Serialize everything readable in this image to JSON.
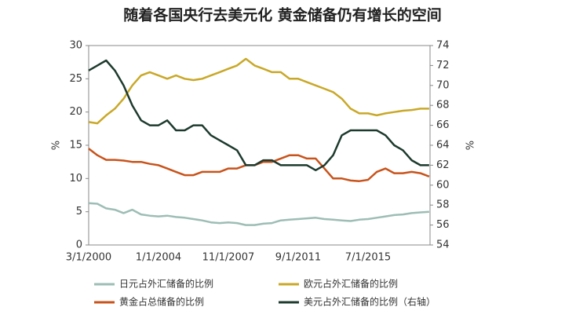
{
  "chart_data": {
    "type": "line",
    "title": "随着各国央行去美元化 黄金储备仍有增长的空间",
    "y_label": "%",
    "y2_label": "%",
    "categories": [
      "3/1/2000",
      null,
      null,
      null,
      null,
      null,
      null,
      null,
      "1/1/2004",
      null,
      null,
      null,
      null,
      null,
      null,
      null,
      "11/1/2007",
      null,
      null,
      null,
      null,
      null,
      null,
      null,
      "9/1/2011",
      null,
      null,
      null,
      null,
      null,
      null,
      null,
      "7/1/2015",
      null,
      null,
      null,
      null,
      null,
      null,
      null
    ],
    "ylim": [
      0,
      30
    ],
    "yticks": [
      0,
      5,
      10,
      15,
      20,
      25,
      30
    ],
    "y2lim": [
      54,
      74
    ],
    "y2ticks": [
      54,
      56,
      58,
      60,
      62,
      64,
      66,
      68,
      70,
      72,
      74
    ],
    "series": [
      {
        "name": "日元占外汇储备的比例",
        "color": "#9dbdb5",
        "values": [
          6.3,
          6.2,
          5.5,
          5.3,
          4.8,
          5.3,
          4.6,
          4.4,
          4.3,
          4.4,
          4.2,
          4.1,
          3.9,
          3.7,
          3.4,
          3.3,
          3.4,
          3.3,
          3.0,
          3.0,
          3.2,
          3.3,
          3.7,
          3.8,
          3.9,
          4.0,
          4.1,
          3.9,
          3.8,
          3.7,
          3.6,
          3.8,
          3.9,
          4.1,
          4.3,
          4.5,
          4.6,
          4.8,
          4.9,
          5.0
        ]
      },
      {
        "name": "欧元占外汇储备的比例",
        "color": "#c9a827",
        "values": [
          18.5,
          18.3,
          19.5,
          20.5,
          22,
          24,
          25.5,
          26,
          25.5,
          25,
          25.5,
          25,
          24.8,
          25,
          25.5,
          26,
          26.5,
          27,
          28,
          27,
          26.5,
          26,
          26,
          25,
          25,
          24.5,
          24,
          23.5,
          23,
          22,
          20.5,
          19.8,
          19.8,
          19.5,
          19.8,
          20,
          20.2,
          20.3,
          20.5,
          20.5
        ]
      },
      {
        "name": "黄金占总储备的比例",
        "color": "#c8531b",
        "values": [
          14.5,
          13.5,
          12.8,
          12.8,
          12.7,
          12.5,
          12.5,
          12.2,
          12,
          11.5,
          11,
          10.5,
          10.5,
          11,
          11,
          11,
          11.5,
          11.5,
          12,
          12,
          12.5,
          12.5,
          13,
          13.5,
          13.5,
          13,
          13,
          11.5,
          10,
          10,
          9.7,
          9.6,
          9.8,
          11,
          11.5,
          10.8,
          10.8,
          11,
          10.8,
          10.3
        ]
      },
      {
        "name": "美元占外汇储备的比例（右轴）",
        "color": "#1d3a2e",
        "axis": "y2",
        "values": [
          71.5,
          72,
          72.5,
          71.5,
          70,
          68,
          66.5,
          66,
          66,
          66.5,
          65.5,
          65.5,
          66,
          66,
          65,
          64.5,
          64,
          63.5,
          62,
          62,
          62.5,
          62.5,
          62,
          62,
          62,
          62,
          61.5,
          62,
          63,
          65,
          65.5,
          65.5,
          65.5,
          65.5,
          65,
          64,
          63.5,
          62.5,
          62,
          62
        ]
      }
    ]
  }
}
